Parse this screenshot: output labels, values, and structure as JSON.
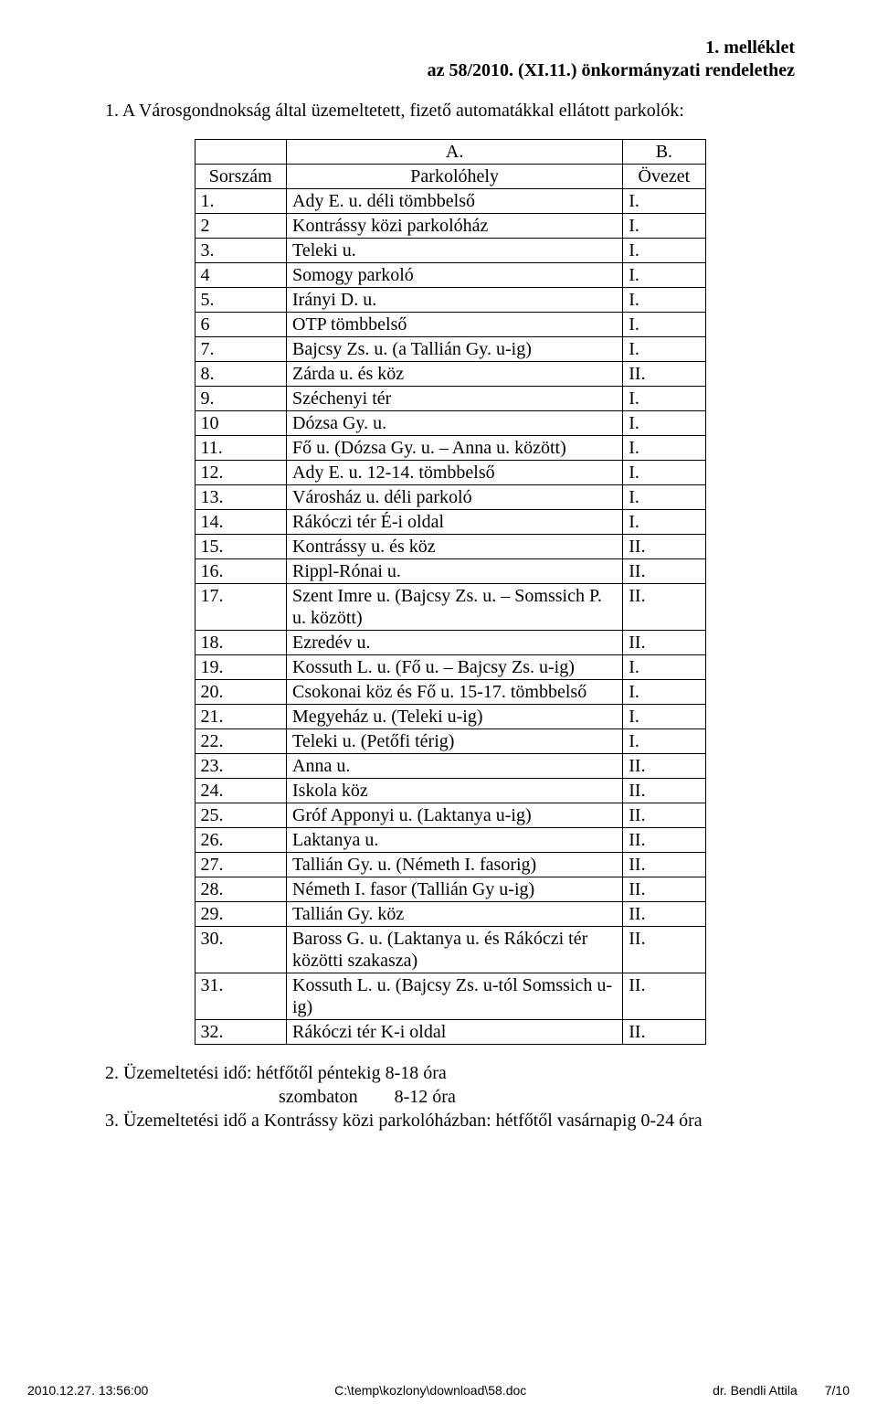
{
  "font": {
    "body_family": "Times New Roman",
    "body_size_pt": 15,
    "footer_family": "Arial",
    "footer_size_pt": 10
  },
  "colors": {
    "text": "#000000",
    "background": "#ffffff",
    "table_border": "#000000"
  },
  "appendix": {
    "line1": "1. melléklet",
    "line2": "az 58/2010. (XI.11.) önkormányzati rendelethez"
  },
  "intro": "1. A Városgondnokság által üzemeltetett, fizető automatákkal ellátott parkolók:",
  "table": {
    "header": {
      "a": "A.",
      "b": "B."
    },
    "subheader": {
      "sorszam": "Sorszám",
      "parkolohely": "Parkolóhely",
      "ovezet": "Övezet"
    },
    "rows": [
      {
        "n": "1.",
        "p": "Ady E. u. déli tömbbelső",
        "z": "I."
      },
      {
        "n": "2",
        "p": "Kontrássy közi parkolóház",
        "z": "I."
      },
      {
        "n": "3.",
        "p": "Teleki u.",
        "z": "I."
      },
      {
        "n": "4",
        "p": "Somogy parkoló",
        "z": "I."
      },
      {
        "n": "5.",
        "p": "Irányi D. u.",
        "z": "I."
      },
      {
        "n": "6",
        "p": "OTP tömbbelső",
        "z": "I."
      },
      {
        "n": "7.",
        "p": "Bajcsy Zs. u. (a Tallián Gy. u-ig)",
        "z": "I."
      },
      {
        "n": "8.",
        "p": "Zárda u. és köz",
        "z": "II."
      },
      {
        "n": "9.",
        "p": "Széchenyi tér",
        "z": "I."
      },
      {
        "n": "10",
        "p": "Dózsa Gy. u.",
        "z": "I."
      },
      {
        "n": "11.",
        "p": "Fő u. (Dózsa Gy. u. – Anna u. között)",
        "z": "I."
      },
      {
        "n": "12.",
        "p": "Ady E. u. 12-14. tömbbelső",
        "z": "I."
      },
      {
        "n": "13.",
        "p": "Városház u. déli parkoló",
        "z": "I."
      },
      {
        "n": "14.",
        "p": "Rákóczi tér É-i oldal",
        "z": "I."
      },
      {
        "n": "15.",
        "p": "Kontrássy u. és köz",
        "z": "II."
      },
      {
        "n": "16.",
        "p": "Rippl-Rónai u.",
        "z": "II."
      },
      {
        "n": "17.",
        "p": "Szent Imre u. (Bajcsy Zs. u. – Somssich P. u. között)",
        "z": "II."
      },
      {
        "n": "18.",
        "p": "Ezredév u.",
        "z": "II."
      },
      {
        "n": "19.",
        "p": "Kossuth L. u. (Fő u. – Bajcsy Zs. u-ig)",
        "z": "I."
      },
      {
        "n": "20.",
        "p": "Csokonai köz és Fő u. 15-17. tömbbelső",
        "z": "I."
      },
      {
        "n": "21.",
        "p": "Megyeház u. (Teleki u-ig)",
        "z": "I."
      },
      {
        "n": "22.",
        "p": "Teleki u. (Petőfi térig)",
        "z": "I."
      },
      {
        "n": "23.",
        "p": "Anna u.",
        "z": "II."
      },
      {
        "n": "24.",
        "p": "Iskola köz",
        "z": "II."
      },
      {
        "n": "25.",
        "p": "Gróf Apponyi u. (Laktanya u-ig)",
        "z": "II."
      },
      {
        "n": "26.",
        "p": "Laktanya u.",
        "z": "II."
      },
      {
        "n": "27.",
        "p": "Tallián Gy. u. (Németh I. fasorig)",
        "z": "II."
      },
      {
        "n": "28.",
        "p": "Németh I. fasor (Tallián Gy u-ig)",
        "z": "II."
      },
      {
        "n": "29.",
        "p": "Tallián Gy. köz",
        "z": "II."
      },
      {
        "n": "30.",
        "p": "Baross G. u. (Laktanya u. és Rákóczi tér közötti szakasza)",
        "z": "II."
      },
      {
        "n": "31.",
        "p": "Kossuth L. u. (Bajcsy Zs. u-tól Somssich u-ig)",
        "z": "II."
      },
      {
        "n": "32.",
        "p": "Rákóczi tér K-i oldal",
        "z": "II."
      }
    ]
  },
  "notes": {
    "line1": "2. Üzemeltetési idő: hétfőtől péntekig 8-18 óra",
    "line2_indent": "szombaton        8-12 óra",
    "line3": "3. Üzemeltetési idő a Kontrássy közi parkolóházban: hétfőtől vasárnapig 0-24 óra"
  },
  "footer": {
    "left": "2010.12.27.   13:56:00",
    "mid": "C:\\temp\\kozlony\\download\\58.doc",
    "author": "dr.  Bendli Attila",
    "page": "7/10"
  }
}
